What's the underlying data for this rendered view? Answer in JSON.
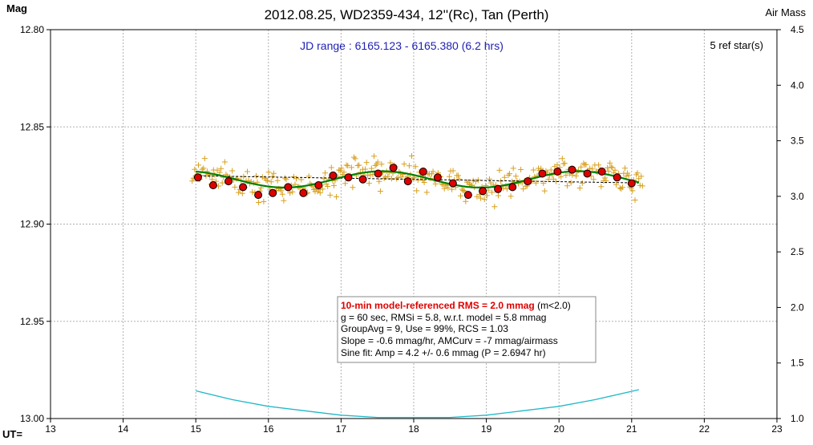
{
  "header": {
    "title": "2012.08.25, WD2359-434, 12''(Rc), Tan (Perth)",
    "ylabel_left": "Mag",
    "ylabel_right": "Air Mass",
    "xlabel": "UT="
  },
  "annotations": {
    "jd_range": "JD range : 6165.123 - 6165.380 (6.2 hrs)",
    "ref_stars": "5 ref star(s)"
  },
  "stats_box": {
    "line1_main": "10-min model-referenced RMS = 2.0 mmag",
    "line1_suffix": " (m<2.0)",
    "line2": "g = 60 sec, RMSi = 5.8, w.r.t. model = 5.8 mmag",
    "line3": "GroupAvg  = 9, Use = 99%, RCS = 1.03",
    "line4": "Slope = -0.6 mmag/hr, AMCurv  = -7 mmag/airmass",
    "line5": "Sine fit: Amp = 4.2 +/- 0.6 mmag (P = 2.6947  hr)"
  },
  "colors": {
    "raw_points": "#d8a020",
    "group_points": "#e00000",
    "sine_fit": "#008000",
    "trend_line": "#000000",
    "airmass": "#20b8c8",
    "stats_red": "#e00000",
    "stats_blue": "#2020a0"
  },
  "chart_data": {
    "type": "scatter",
    "x_axis": {
      "label": "UT=",
      "range": [
        13,
        23
      ],
      "ticks": [
        "13",
        "14",
        "15",
        "16",
        "17",
        "18",
        "19",
        "20",
        "21",
        "22",
        "23"
      ]
    },
    "y_axis_left": {
      "label": "Mag",
      "range": [
        12.8,
        13.0
      ],
      "inverted": true,
      "ticks": [
        "12.80",
        "12.85",
        "12.90",
        "12.95",
        "13.00"
      ]
    },
    "y_axis_right": {
      "label": "Air Mass",
      "range": [
        1.0,
        4.5
      ],
      "ticks": [
        "1.0",
        "1.5",
        "2.0",
        "2.5",
        "3.0",
        "3.5",
        "4.0",
        "4.5"
      ]
    },
    "grid": true,
    "group_averages": {
      "x": [
        15.03,
        15.24,
        15.45,
        15.65,
        15.86,
        16.06,
        16.27,
        16.48,
        16.69,
        16.89,
        17.1,
        17.3,
        17.51,
        17.72,
        17.92,
        18.13,
        18.33,
        18.54,
        18.75,
        18.95,
        19.16,
        19.36,
        19.57,
        19.77,
        19.98,
        20.18,
        20.39,
        20.59,
        20.8,
        21.0
      ],
      "y": [
        12.876,
        12.88,
        12.878,
        12.881,
        12.885,
        12.884,
        12.881,
        12.884,
        12.88,
        12.875,
        12.876,
        12.877,
        12.874,
        12.871,
        12.878,
        12.873,
        12.876,
        12.879,
        12.885,
        12.883,
        12.882,
        12.881,
        12.878,
        12.874,
        12.873,
        12.872,
        12.874,
        12.873,
        12.876,
        12.879
      ]
    },
    "sine_fit": {
      "amplitude_mmag": 4.2,
      "period_hr": 2.6947,
      "mean_mag": 12.877,
      "x_range": [
        15.0,
        21.1
      ]
    },
    "trend": {
      "slope_mmag_per_hr": -0.6,
      "x_range": [
        15.0,
        21.1
      ]
    },
    "airmass": {
      "x": [
        15.0,
        15.5,
        16.0,
        16.5,
        17.0,
        17.5,
        18.0,
        18.5,
        19.0,
        19.5,
        20.0,
        20.5,
        21.1
      ],
      "y": [
        1.25,
        1.17,
        1.11,
        1.07,
        1.03,
        1.01,
        1.01,
        1.01,
        1.03,
        1.07,
        1.11,
        1.17,
        1.26
      ]
    }
  }
}
